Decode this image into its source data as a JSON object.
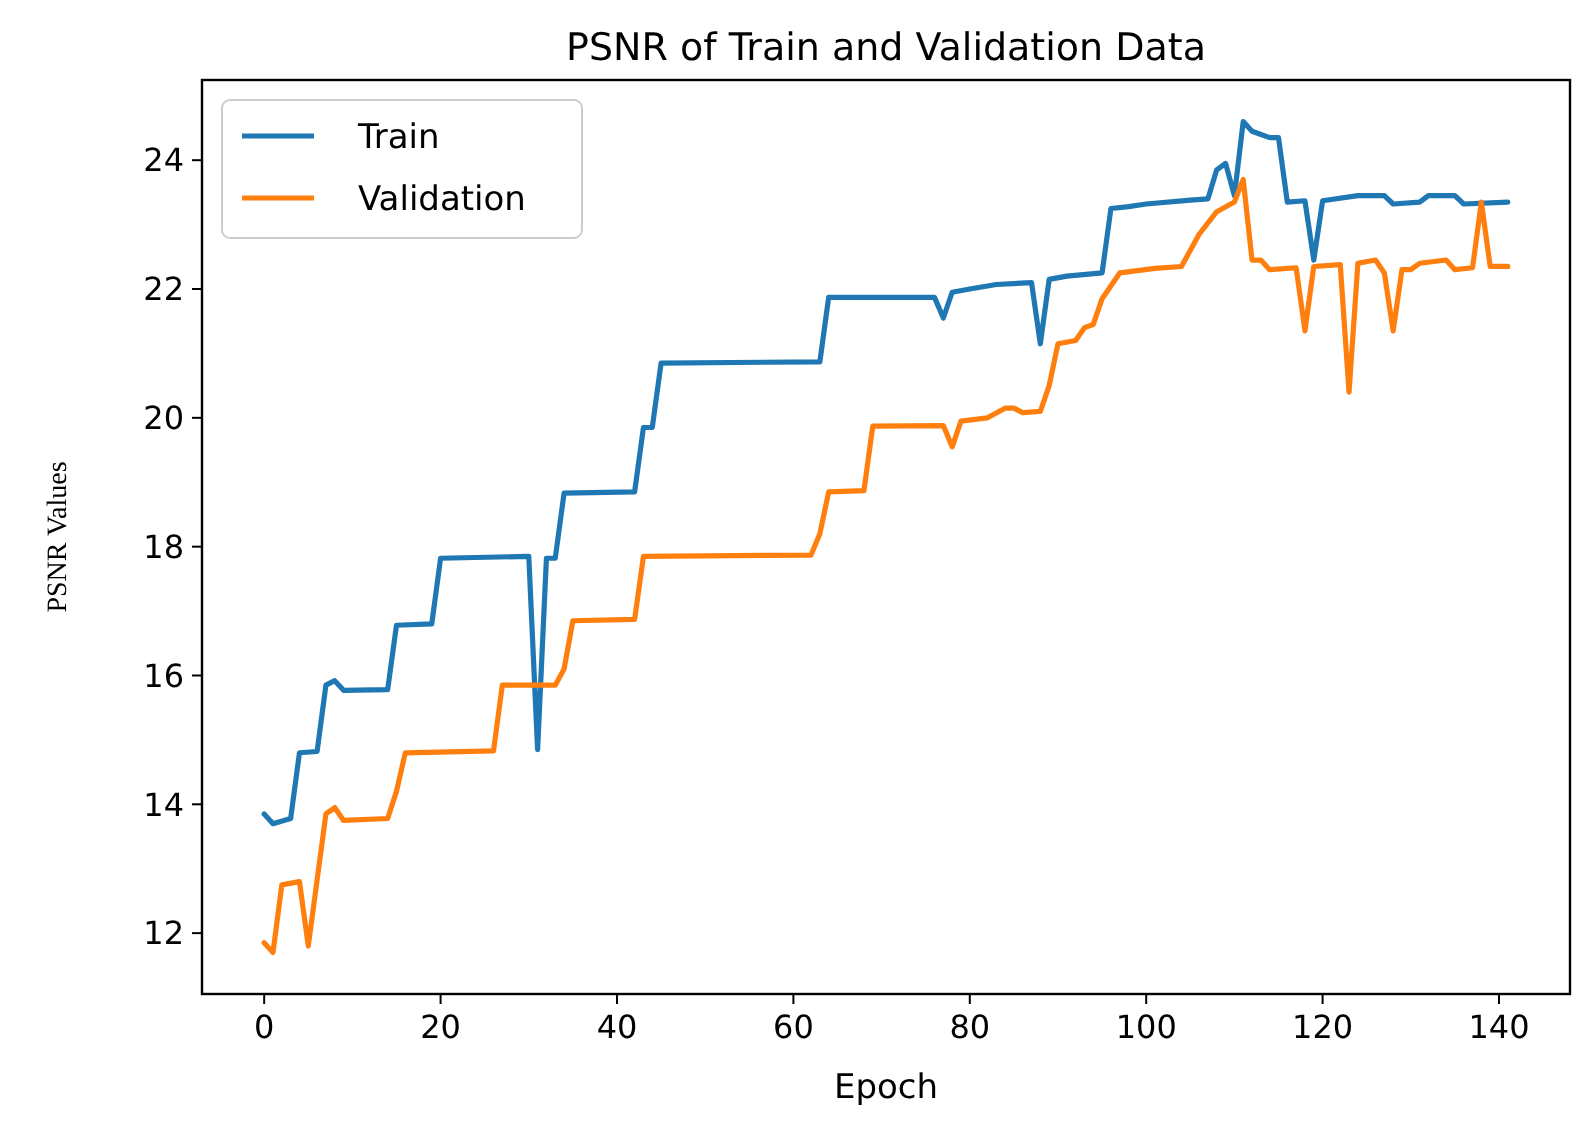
{
  "chart_data": {
    "type": "line",
    "title": "PSNR of Train and Validation Data",
    "xlabel": "Epoch",
    "ylabel": "PSNR Values",
    "legend": "top left",
    "grid": false,
    "marker": "none",
    "line_style": "solid",
    "xlim": [
      -7.05,
      148.05
    ],
    "xticks": [
      0,
      20,
      40,
      60,
      80,
      100,
      120,
      140
    ],
    "ylim": [
      11.055,
      25.245
    ],
    "yticks": [
      12,
      14,
      16,
      18,
      20,
      22,
      24
    ],
    "series": [
      {
        "name": "Train",
        "color": "#1f77b4",
        "x": [
          0,
          1,
          3,
          4,
          6,
          7,
          8,
          9,
          14,
          15,
          19,
          20,
          30,
          31,
          32,
          33,
          34,
          42,
          43,
          44,
          45,
          63,
          64,
          76,
          77,
          78,
          80,
          83,
          87,
          88,
          89,
          91,
          95,
          96,
          98,
          100,
          105,
          107,
          108,
          109,
          110,
          111,
          112,
          114,
          115,
          116,
          118,
          119,
          120,
          124,
          127,
          128,
          131,
          132,
          135,
          136,
          141
        ],
        "values": [
          13.85,
          13.7,
          13.78,
          14.8,
          14.82,
          15.85,
          15.92,
          15.77,
          15.78,
          16.78,
          16.8,
          17.82,
          17.85,
          14.85,
          17.82,
          17.82,
          18.83,
          18.85,
          19.85,
          19.85,
          20.85,
          20.87,
          21.87,
          21.87,
          21.55,
          21.95,
          22.0,
          22.07,
          22.1,
          21.15,
          22.15,
          22.2,
          22.25,
          23.25,
          23.28,
          23.32,
          23.38,
          23.4,
          23.85,
          23.95,
          23.45,
          24.6,
          24.45,
          24.35,
          24.35,
          23.35,
          23.37,
          22.45,
          23.37,
          23.45,
          23.45,
          23.32,
          23.35,
          23.45,
          23.45,
          23.32,
          23.35
        ]
      },
      {
        "name": "Validation",
        "color": "#ff7f0e",
        "x": [
          0,
          1,
          2,
          4,
          5,
          7,
          8,
          9,
          14,
          15,
          16,
          26,
          27,
          32,
          33,
          34,
          35,
          42,
          43,
          62,
          63,
          64,
          68,
          69,
          77,
          78,
          79,
          82,
          84,
          85,
          86,
          88,
          89,
          90,
          92,
          93,
          94,
          95,
          97,
          101,
          104,
          106,
          108,
          110,
          111,
          112,
          113,
          114,
          117,
          118,
          119,
          122,
          123,
          124,
          126,
          127,
          128,
          129,
          130,
          131,
          134,
          135,
          137,
          138,
          139,
          141
        ],
        "values": [
          11.85,
          11.7,
          12.75,
          12.8,
          11.8,
          13.85,
          13.95,
          13.75,
          13.78,
          14.2,
          14.8,
          14.83,
          15.85,
          15.85,
          15.85,
          16.1,
          16.85,
          16.87,
          17.85,
          17.87,
          18.2,
          18.85,
          18.87,
          19.87,
          19.88,
          19.55,
          19.95,
          20.0,
          20.15,
          20.15,
          20.08,
          20.1,
          20.5,
          21.15,
          21.2,
          21.4,
          21.45,
          21.85,
          22.25,
          22.32,
          22.35,
          22.85,
          23.2,
          23.35,
          23.7,
          22.45,
          22.45,
          22.3,
          22.33,
          21.35,
          22.35,
          22.38,
          20.4,
          22.4,
          22.45,
          22.25,
          21.35,
          22.3,
          22.3,
          22.4,
          22.45,
          22.3,
          22.33,
          23.35,
          22.35,
          22.35
        ]
      }
    ]
  }
}
